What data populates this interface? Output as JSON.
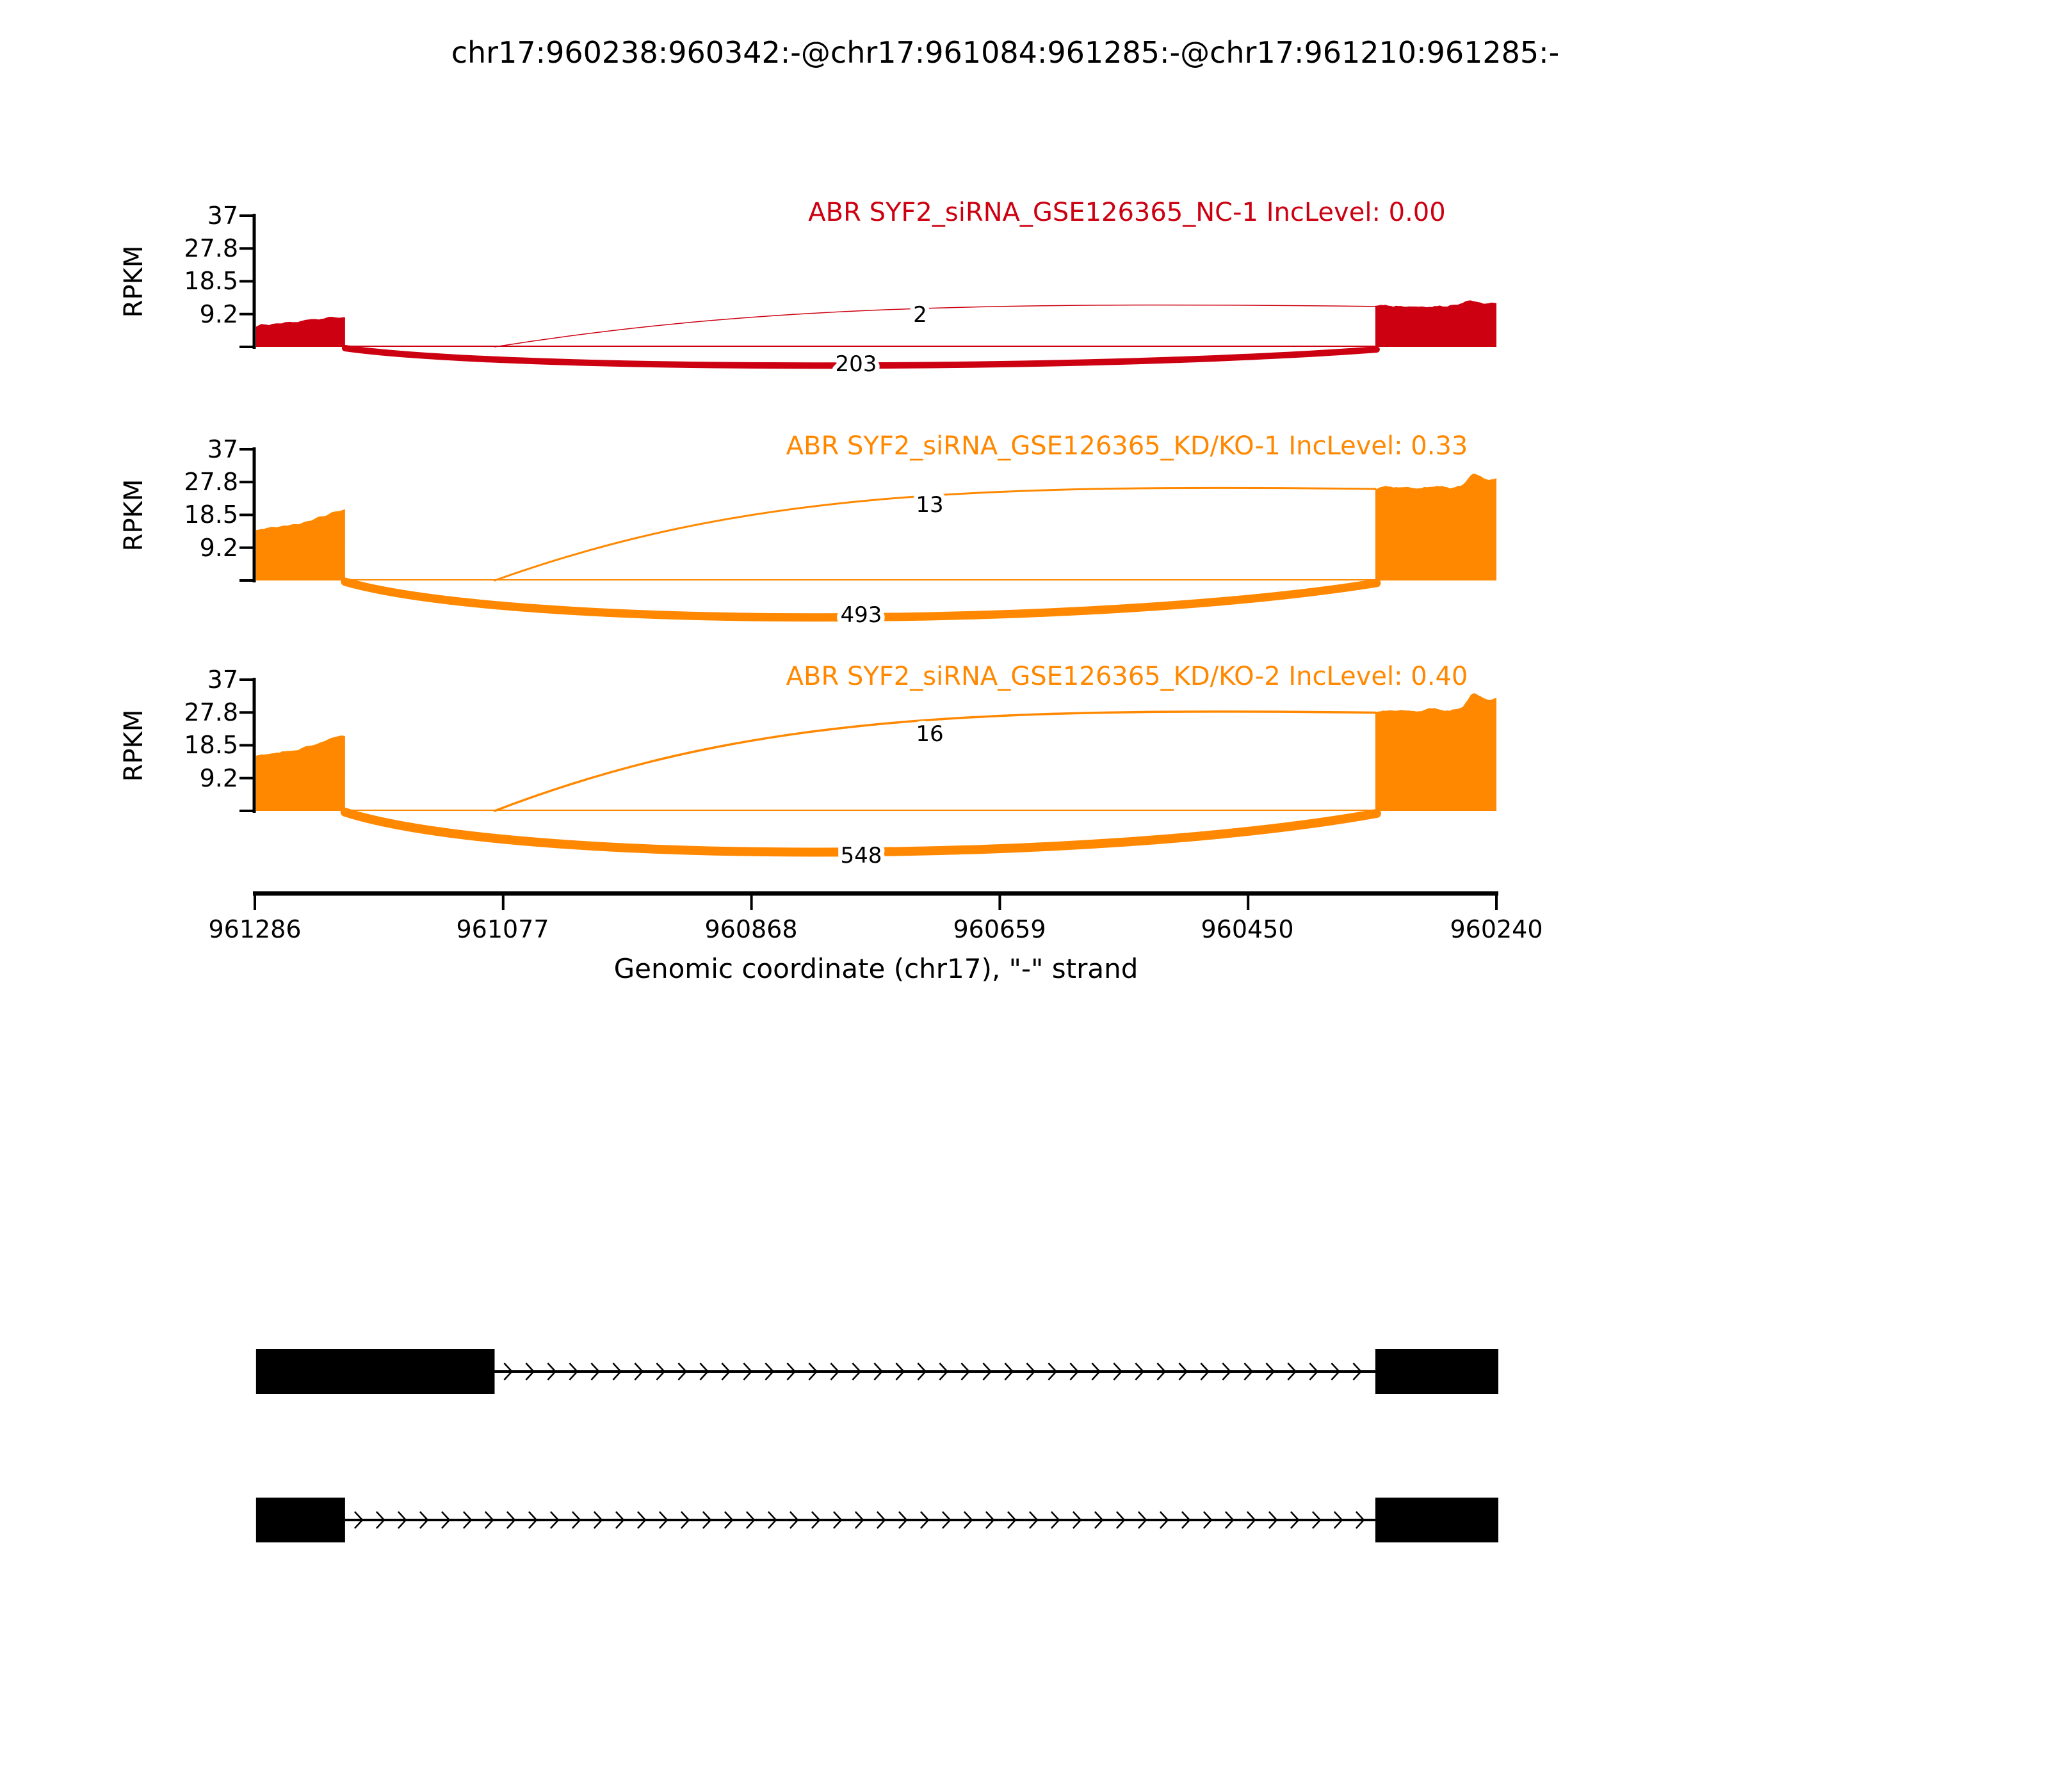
{
  "title": "chr17:960238:960342:-@chr17:961084:961285:-@chr17:961210:961285:-",
  "colors": {
    "group1_red": "#CC0011",
    "group2_orange": "#FF8800",
    "gene_model": "#000000"
  },
  "y_axis": {
    "label": "RPKM",
    "ticks": [
      "37",
      "27.8",
      "18.5",
      "9.2"
    ],
    "max": 37
  },
  "x_axis": {
    "label": "Genomic coordinate (chr17), \"-\" strand",
    "ticks": [
      "961286",
      "961077",
      "960868",
      "960659",
      "960450",
      "960240"
    ],
    "view_start": 961286,
    "view_end": 960240,
    "strand": "-"
  },
  "chart_data": {
    "type": "sashimi",
    "region": {
      "chrom": "chr17",
      "view_start": 961286,
      "view_end": 960240,
      "strand": "-"
    },
    "event_exons": {
      "downstream_exon": [
        960342,
        960238
      ],
      "upstream_long_exon": [
        961285,
        961084
      ],
      "upstream_short_exon": [
        961285,
        961210
      ]
    },
    "y_max_rpkm": 37,
    "tracks": [
      {
        "name": "ABR SYF2_siRNA_GSE126365_NC-1",
        "inc_level": "0.00",
        "label": "ABR SYF2_siRNA_GSE126365_NC-1 IncLevel: 0.00",
        "color": "#CC0011",
        "coverage": [
          {
            "start": 961285,
            "end": 961210,
            "rpkm": [
              [
                0,
                5.9
              ],
              [
                0.15,
                6.5
              ],
              [
                0.3,
                6.8
              ],
              [
                0.45,
                7.1
              ],
              [
                0.6,
                7.5
              ],
              [
                0.75,
                8.0
              ],
              [
                0.9,
                8.4
              ],
              [
                1,
                8.3
              ]
            ]
          },
          {
            "start": 960342,
            "end": 960240,
            "rpkm": [
              [
                0,
                11.4
              ],
              [
                0.15,
                11.7
              ],
              [
                0.3,
                11.5
              ],
              [
                0.45,
                11.3
              ],
              [
                0.6,
                11.6
              ],
              [
                0.68,
                12.2
              ],
              [
                0.75,
                13.1
              ],
              [
                0.82,
                12.5
              ],
              [
                0.9,
                11.9
              ],
              [
                1,
                12.3
              ]
            ]
          }
        ],
        "junctions": [
          {
            "count": 2,
            "from": 961084,
            "to": 960342,
            "type": "inclusion",
            "arc": "up",
            "stroke": 1.5
          },
          {
            "count": 203,
            "from": 961210,
            "to": 960342,
            "type": "exclusion",
            "arc": "down",
            "stroke": 10
          }
        ]
      },
      {
        "name": "ABR SYF2_siRNA_GSE126365_KD/KO-1",
        "inc_level": "0.33",
        "label": "ABR SYF2_siRNA_GSE126365_KD/KO-1 IncLevel: 0.33",
        "color": "#FF8800",
        "coverage": [
          {
            "start": 961285,
            "end": 961210,
            "rpkm": [
              [
                0,
                14.4
              ],
              [
                0.2,
                15.2
              ],
              [
                0.35,
                15.4
              ],
              [
                0.5,
                16.3
              ],
              [
                0.65,
                17.3
              ],
              [
                0.8,
                18.5
              ],
              [
                0.92,
                19.8
              ],
              [
                1,
                20.2
              ]
            ]
          },
          {
            "start": 960342,
            "end": 960240,
            "rpkm": [
              [
                0,
                25.8
              ],
              [
                0.08,
                26.6
              ],
              [
                0.2,
                26.3
              ],
              [
                0.35,
                26.1
              ],
              [
                0.5,
                26.7
              ],
              [
                0.62,
                25.9
              ],
              [
                0.72,
                26.9
              ],
              [
                0.8,
                30.2
              ],
              [
                0.87,
                29.3
              ],
              [
                0.94,
                28.4
              ],
              [
                1,
                29.0
              ]
            ]
          }
        ],
        "junctions": [
          {
            "count": 13,
            "from": 961084,
            "to": 960342,
            "type": "inclusion",
            "arc": "up",
            "stroke": 3
          },
          {
            "count": 493,
            "from": 961210,
            "to": 960342,
            "type": "exclusion",
            "arc": "down",
            "stroke": 13
          }
        ]
      },
      {
        "name": "ABR SYF2_siRNA_GSE126365_KD/KO-2",
        "inc_level": "0.40",
        "label": "ABR SYF2_siRNA_GSE126365_KD/KO-2 IncLevel: 0.40",
        "color": "#FF8800",
        "coverage": [
          {
            "start": 961285,
            "end": 961210,
            "rpkm": [
              [
                0,
                15.6
              ],
              [
                0.15,
                16.3
              ],
              [
                0.3,
                16.9
              ],
              [
                0.45,
                17.1
              ],
              [
                0.6,
                18.3
              ],
              [
                0.75,
                19.5
              ],
              [
                0.9,
                20.9
              ],
              [
                1,
                21.1
              ]
            ]
          },
          {
            "start": 960342,
            "end": 960240,
            "rpkm": [
              [
                0,
                27.7
              ],
              [
                0.08,
                28.5
              ],
              [
                0.2,
                28.2
              ],
              [
                0.35,
                28.0
              ],
              [
                0.5,
                28.9
              ],
              [
                0.62,
                28.1
              ],
              [
                0.72,
                29.3
              ],
              [
                0.8,
                33.3
              ],
              [
                0.87,
                32.1
              ],
              [
                0.94,
                31.2
              ],
              [
                1,
                31.8
              ]
            ]
          }
        ],
        "junctions": [
          {
            "count": 16,
            "from": 961084,
            "to": 960342,
            "type": "inclusion",
            "arc": "up",
            "stroke": 3.5
          },
          {
            "count": 548,
            "from": 961210,
            "to": 960342,
            "type": "exclusion",
            "arc": "down",
            "stroke": 14
          }
        ]
      }
    ]
  },
  "gene_models": [
    {
      "exons": [
        [
          961285,
          961084
        ],
        [
          960342,
          960238
        ]
      ],
      "intron": [
        961084,
        960342
      ]
    },
    {
      "exons": [
        [
          961285,
          961210
        ],
        [
          960342,
          960238
        ]
      ],
      "intron": [
        961210,
        960342
      ]
    }
  ]
}
